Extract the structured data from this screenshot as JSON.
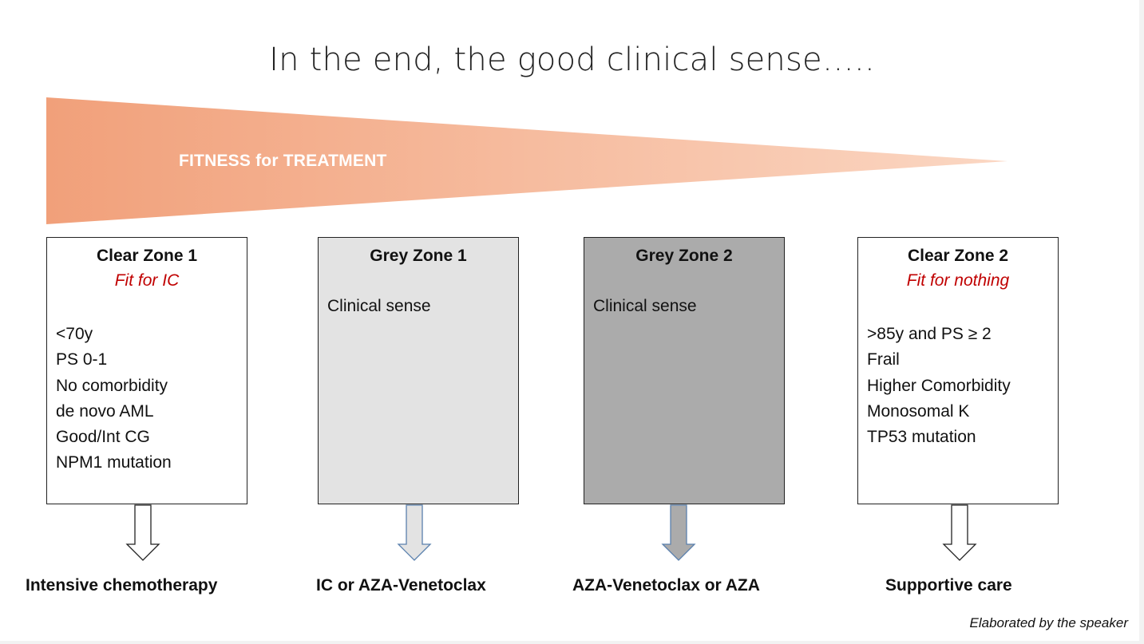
{
  "title": "In the end, the good clinical sense…..",
  "fitness_bar": {
    "label": "FITNESS for TREATMENT",
    "colors": {
      "start": "#f1a07a",
      "end": "#fbd7c3"
    }
  },
  "zones": [
    {
      "title": "Clear Zone 1",
      "subtitle": "Fit for IC",
      "criteria": [
        "<70y",
        "PS 0-1",
        "No comorbidity",
        "de novo AML",
        "Good/Int CG",
        "NPM1 mutation"
      ],
      "treatment": "Intensive chemotherapy",
      "fill": "#ffffff"
    },
    {
      "title": "Grey Zone 1",
      "note": "Clinical sense",
      "treatment": "IC or AZA-Venetoclax",
      "fill": "#e3e3e3"
    },
    {
      "title": "Grey Zone 2",
      "note": "Clinical sense",
      "treatment": "AZA-Venetoclax or AZA",
      "fill": "#ababab"
    },
    {
      "title": "Clear Zone 2",
      "subtitle": "Fit for nothing",
      "criteria": [
        ">85y and PS ≥ 2",
        "Frail",
        "Higher Comorbidity",
        "Monosomal K",
        "TP53 mutation"
      ],
      "treatment": "Supportive care",
      "fill": "#ffffff"
    }
  ],
  "credit": "Elaborated by the speaker"
}
